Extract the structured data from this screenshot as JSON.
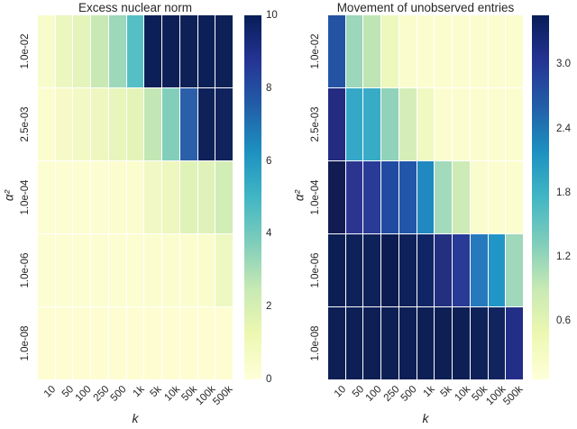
{
  "colors": {
    "background": "#ffffff",
    "text": "#262626",
    "colormap": "YlGnBu",
    "colormap_max": "#081d58",
    "colormap_min": "#ffffd9"
  },
  "chart_data": [
    {
      "type": "heatmap",
      "title": "Excess nuclear norm",
      "xlabel": "k",
      "ylabel": "α²",
      "x_categories": [
        "10",
        "50",
        "100",
        "250",
        "500",
        "1k",
        "5k",
        "10k",
        "50k",
        "100k",
        "500k"
      ],
      "y_categories": [
        "1.0e-02",
        "2.5e-03",
        "1.0e-04",
        "1.0e-06",
        "1.0e-08"
      ],
      "values": [
        [
          0.4,
          0.9,
          1.1,
          1.7,
          2.6,
          4.6,
          10,
          10,
          10,
          10,
          10
        ],
        [
          0.15,
          0.35,
          0.45,
          0.65,
          0.85,
          0.95,
          1.8,
          2.9,
          7.0,
          10,
          9.8
        ],
        [
          0.05,
          0.05,
          0.05,
          0.08,
          0.1,
          0.12,
          0.55,
          0.65,
          1.05,
          1.0,
          1.35
        ],
        [
          0.08,
          0.08,
          0.08,
          0.08,
          0.08,
          0.08,
          0.1,
          0.1,
          0.12,
          0.2,
          0.55
        ],
        [
          0.05,
          0.05,
          0.05,
          0.05,
          0.05,
          0.05,
          0.05,
          0.05,
          0.05,
          0.05,
          0.05
        ]
      ],
      "cell_colors": [
        [
          "#f8fcca",
          "#ecf7c0",
          "#e4f4ba",
          "#c8e9b4",
          "#9dd8ba",
          "#55bfc6",
          "#0c2057",
          "#0c2057",
          "#0d2157",
          "#0c2057",
          "#0d2157"
        ],
        [
          "#fcfdcf",
          "#f5fac7",
          "#f3f9c5",
          "#eef7bf",
          "#e8f5bb",
          "#e4f4b9",
          "#c3e7b4",
          "#82cebb",
          "#2c5fa9",
          "#0e2158",
          "#10235c"
        ],
        [
          "#fdfdd2",
          "#fdfdd2",
          "#fdfdd2",
          "#fcfdd0",
          "#fbfdce",
          "#fbfdce",
          "#f1f8c3",
          "#eef7be",
          "#dff2b8",
          "#e0f2b9",
          "#d2edb5"
        ],
        [
          "#fcfdd0",
          "#fcfdd0",
          "#fcfdd0",
          "#fcfdd0",
          "#fcfdd0",
          "#fcfdd0",
          "#fbfdcf",
          "#fbfdcf",
          "#fbfdce",
          "#fafccc",
          "#eef8c1"
        ],
        [
          "#fdfdd1",
          "#fdfdd1",
          "#fdfdd1",
          "#fdfdd1",
          "#fdfdd1",
          "#fdfdd1",
          "#fdfdd1",
          "#fdfdd1",
          "#fdfdd1",
          "#fdfdd1",
          "#fdfdd1"
        ]
      ],
      "colorbar": {
        "tick_values": [
          10,
          8,
          6,
          4,
          2,
          0
        ],
        "tick_labels": [
          "10",
          "8",
          "6",
          "4",
          "2",
          "0"
        ],
        "vmin": 0,
        "vmax": 10
      }
    },
    {
      "type": "heatmap",
      "title": "Movement of unobserved entries",
      "xlabel": "k",
      "ylabel": "α²",
      "x_categories": [
        "10",
        "50",
        "100",
        "250",
        "500",
        "1k",
        "5k",
        "10k",
        "50k",
        "100k",
        "500k"
      ],
      "y_categories": [
        "1.0e-02",
        "2.5e-03",
        "1.0e-04",
        "1.0e-06",
        "1.0e-08"
      ],
      "values": [
        [
          2.65,
          1.45,
          1.2,
          0.8,
          0.55,
          0.5,
          0.5,
          0.5,
          0.5,
          0.5,
          0.5
        ],
        [
          3.05,
          2.05,
          2.0,
          1.5,
          1.0,
          0.75,
          0.55,
          0.5,
          0.5,
          0.5,
          0.5
        ],
        [
          3.4,
          3.1,
          3.05,
          2.95,
          2.85,
          2.35,
          1.45,
          1.15,
          0.6,
          0.55,
          0.55
        ],
        [
          3.45,
          3.45,
          3.45,
          3.46,
          3.45,
          3.4,
          3.2,
          3.05,
          2.5,
          2.2,
          1.45
        ],
        [
          3.46,
          3.46,
          3.46,
          3.46,
          3.46,
          3.46,
          3.46,
          3.46,
          3.45,
          3.4,
          3.1
        ]
      ],
      "cell_colors": [
        [
          "#2453a4",
          "#9cd6bb",
          "#c0e5b4",
          "#edf8bd",
          "#fafcce",
          "#fbfdcf",
          "#fbfdcf",
          "#fbfdcf",
          "#fbfdcf",
          "#fbfdcf",
          "#fbfdcf"
        ],
        [
          "#232c80",
          "#35a8c8",
          "#38abc7",
          "#90d3ba",
          "#d5eeb9",
          "#f0f9c2",
          "#fbfdce",
          "#fbfdce",
          "#fbfdce",
          "#fbfdce",
          "#fbfdce"
        ],
        [
          "#121b52",
          "#2b3590",
          "#2a3a97",
          "#204ba0",
          "#2156a8",
          "#2089c0",
          "#a3dabc",
          "#cdebb7",
          "#f9fccc",
          "#fbfdce",
          "#fbfdce"
        ],
        [
          "#0c1f55",
          "#0e2158",
          "#0e2158",
          "#0c1c52",
          "#0e2159",
          "#102566",
          "#22307f",
          "#283b96",
          "#2779bd",
          "#2196c6",
          "#9fd8bb"
        ],
        [
          "#0d1f55",
          "#0d1f55",
          "#0d1f55",
          "#0d1f55",
          "#0d1f55",
          "#0d1f55",
          "#0d1f55",
          "#0d1f55",
          "#0e2159",
          "#11245e",
          "#232f86"
        ]
      ],
      "colorbar": {
        "tick_values": [
          3.0,
          2.4,
          1.8,
          1.2,
          0.6
        ],
        "tick_labels": [
          "3.0",
          "2.4",
          "1.8",
          "1.2",
          "0.6"
        ],
        "vmin": 0.05,
        "vmax": 3.46
      }
    }
  ]
}
